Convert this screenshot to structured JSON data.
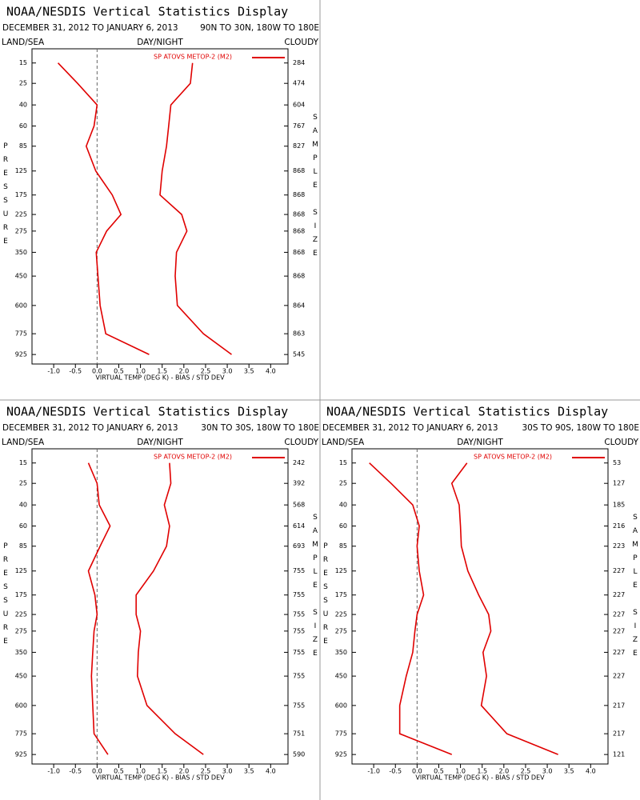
{
  "chart_data": [
    {
      "type": "line",
      "title": "NOAA/NESDIS Vertical Statistics Display",
      "subtitle": "DECEMBER 31, 2012 TO JANUARY 6, 2013",
      "region": "90N TO 30N, 180W TO 180E",
      "labels": [
        "LAND/SEA",
        "DAY/NIGHT",
        "CLOUDY"
      ],
      "y_label": "PRESSURE",
      "y2_label": "SAMPLE SIZE",
      "x_label": "VIRTUAL TEMP (DEG K) - BIAS / STD DEV",
      "y": [
        15,
        25,
        40,
        60,
        85,
        125,
        175,
        225,
        275,
        350,
        450,
        600,
        775,
        925
      ],
      "ylim": [
        10,
        1000
      ],
      "sample_size": [
        284,
        474,
        604,
        767,
        827,
        868,
        868,
        868,
        868,
        868,
        868,
        864,
        863,
        545
      ],
      "xlim": [
        -1.5,
        4.4
      ],
      "xticks": [
        {
          "value": -1,
          "label": "-1.0"
        },
        -0.5,
        {
          "value": 0,
          "label": "0.0"
        },
        0.5,
        {
          "value": 1,
          "label": "1.0"
        },
        1.5,
        {
          "value": 2,
          "label": "2.0"
        },
        2.5,
        {
          "value": 3,
          "label": "3.0"
        },
        3.5,
        {
          "value": 4,
          "label": "4.0"
        }
      ],
      "series": [
        {
          "name": "SP ATOVS METOP-2 (M2)",
          "color": "#e00000",
          "bias": [
            -0.9,
            -0.45,
            0.0,
            -0.07,
            -0.25,
            -0.03,
            0.35,
            0.55,
            0.22,
            -0.02,
            0.02,
            0.07,
            0.2,
            1.2
          ],
          "std_dev": [
            2.2,
            2.15,
            1.7,
            1.65,
            1.6,
            1.5,
            1.45,
            1.95,
            2.07,
            1.83,
            1.8,
            1.85,
            2.45,
            3.1
          ]
        }
      ]
    },
    {
      "type": "line",
      "title": "NOAA/NESDIS Vertical Statistics Display",
      "subtitle": "DECEMBER 31, 2012 TO JANUARY 6, 2013",
      "region": "30N TO 30S, 180W TO 180E",
      "labels": [
        "LAND/SEA",
        "DAY/NIGHT",
        "CLOUDY"
      ],
      "y_label": "PRESSURE",
      "y2_label": "SAMPLE SIZE",
      "x_label": "VIRTUAL TEMP (DEG K) - BIAS / STD DEV",
      "y": [
        15,
        25,
        40,
        60,
        85,
        125,
        175,
        225,
        275,
        350,
        450,
        600,
        775,
        925
      ],
      "ylim": [
        10,
        1000
      ],
      "sample_size": [
        242,
        392,
        568,
        614,
        693,
        755,
        755,
        755,
        755,
        755,
        755,
        755,
        751,
        590
      ],
      "xlim": [
        -1.5,
        4.4
      ],
      "xticks": [
        {
          "value": -1,
          "label": "-1.0"
        },
        -0.5,
        {
          "value": 0,
          "label": "0.0"
        },
        0.5,
        {
          "value": 1,
          "label": "1.0"
        },
        1.5,
        {
          "value": 2,
          "label": "2.0"
        },
        2.5,
        {
          "value": 3,
          "label": "3.0"
        },
        3.5,
        {
          "value": 4,
          "label": "4.0"
        }
      ],
      "series": [
        {
          "name": "SP ATOVS METOP-2 (M2)",
          "color": "#e00000",
          "bias": [
            -0.2,
            0.0,
            0.05,
            0.3,
            0.07,
            -0.2,
            -0.05,
            0.0,
            -0.07,
            -0.1,
            -0.13,
            -0.1,
            -0.07,
            0.25
          ],
          "std_dev": [
            1.67,
            1.7,
            1.55,
            1.67,
            1.6,
            1.3,
            0.9,
            0.9,
            1.0,
            0.95,
            0.93,
            1.15,
            1.8,
            2.45
          ]
        }
      ]
    },
    {
      "type": "line",
      "title": "NOAA/NESDIS Vertical Statistics Display",
      "subtitle": "DECEMBER 31, 2012 TO JANUARY 6, 2013",
      "region": "30S TO 90S, 180W TO 180E",
      "labels": [
        "LAND/SEA",
        "DAY/NIGHT",
        "CLOUDY"
      ],
      "y_label": "PRESSURE",
      "y2_label": "SAMPLE SIZE",
      "x_label": "VIRTUAL TEMP (DEG K) - BIAS / STD DEV",
      "y": [
        15,
        25,
        40,
        60,
        85,
        125,
        175,
        225,
        275,
        350,
        450,
        600,
        775,
        925
      ],
      "ylim": [
        10,
        1000
      ],
      "sample_size": [
        53,
        127,
        185,
        216,
        223,
        227,
        227,
        227,
        227,
        227,
        227,
        217,
        217,
        121
      ],
      "xlim": [
        -1.5,
        4.4
      ],
      "xticks": [
        {
          "value": -1,
          "label": "-1.0"
        },
        -0.5,
        {
          "value": 0,
          "label": "0.0"
        },
        0.5,
        {
          "value": 1,
          "label": "1.0"
        },
        1.5,
        {
          "value": 2,
          "label": "2.0"
        },
        2.5,
        {
          "value": 3,
          "label": "3.0"
        },
        3.5,
        {
          "value": 4,
          "label": "4.0"
        }
      ],
      "series": [
        {
          "name": "SP ATOVS METOP-2 (M2)",
          "color": "#e00000",
          "bias": [
            -1.1,
            -0.6,
            -0.1,
            0.05,
            0.0,
            0.05,
            0.15,
            0.0,
            -0.05,
            -0.1,
            -0.25,
            -0.4,
            -0.4,
            0.8
          ],
          "std_dev": [
            1.15,
            0.8,
            0.97,
            1.0,
            1.02,
            1.17,
            1.42,
            1.65,
            1.7,
            1.52,
            1.6,
            1.48,
            2.07,
            3.25
          ]
        }
      ]
    }
  ]
}
